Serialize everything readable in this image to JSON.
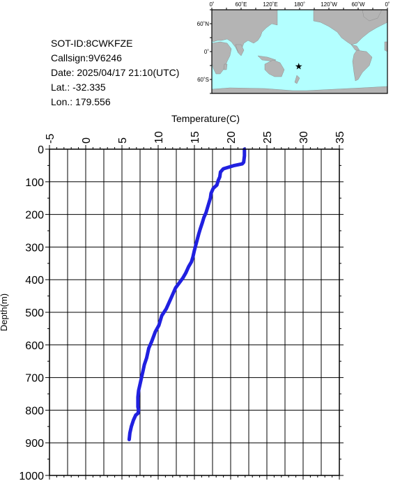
{
  "info": {
    "sot_id": "SOT-ID:8CWKFZE",
    "callsign": "Callsign:9V6246",
    "date": "Date:  2025/04/17 21:10(UTC)",
    "lat": "Lat.:  -32.335",
    "lon": "Lon.:  179.556"
  },
  "map": {
    "lon_labels": [
      "0˚",
      "60˚E",
      "120˚E",
      "180˚",
      "120˚W",
      "60˚W",
      "0˚"
    ],
    "lat_labels": [
      "60˚N",
      "0˚",
      "60˚S"
    ],
    "marker": {
      "lon": 179.556,
      "lat": -32.335
    },
    "colors": {
      "ocean": "#b3ffff",
      "land": "#b4b4b4",
      "marker": "#ff0000"
    }
  },
  "chart_data": {
    "type": "line",
    "xlabel": "Temperature(C)",
    "ylabel": "Depth(m)",
    "xlim": [
      -5,
      35
    ],
    "ylim": [
      1000,
      0
    ],
    "x_ticks": [
      "-5",
      "0",
      "5",
      "10",
      "15",
      "20",
      "25",
      "30",
      "35"
    ],
    "y_ticks": [
      "0",
      "100",
      "200",
      "300",
      "400",
      "500",
      "600",
      "700",
      "800",
      "900",
      "1000"
    ],
    "grid": true,
    "line_color": "#2020e0",
    "series": [
      {
        "x": [
          21.9,
          21.9,
          21.8,
          21.6,
          20.5,
          19.0,
          18.6,
          18.5,
          18.3,
          18.1,
          17.6,
          17.3,
          17.2,
          17.0,
          16.8,
          16.6,
          16.3,
          16.1,
          15.8,
          15.6,
          15.3,
          15.0,
          14.8,
          14.6,
          14.2,
          13.8,
          13.4,
          12.9,
          12.4,
          11.9,
          11.5,
          11.1,
          10.5,
          10.1,
          9.6,
          9.1,
          8.7,
          8.4,
          8.1,
          7.9,
          7.7,
          7.5,
          7.3,
          7.2,
          7.2,
          7.3,
          7.2,
          6.9,
          6.6,
          6.3,
          6.1,
          6.0
        ],
        "y": [
          0,
          20,
          40,
          45,
          50,
          60,
          70,
          85,
          95,
          110,
          120,
          135,
          150,
          165,
          180,
          195,
          210,
          225,
          245,
          260,
          285,
          310,
          330,
          345,
          360,
          380,
          395,
          410,
          425,
          450,
          470,
          490,
          510,
          540,
          560,
          590,
          610,
          640,
          660,
          680,
          700,
          720,
          740,
          760,
          790,
          800,
          810,
          815,
          830,
          850,
          870,
          890
        ]
      }
    ]
  }
}
